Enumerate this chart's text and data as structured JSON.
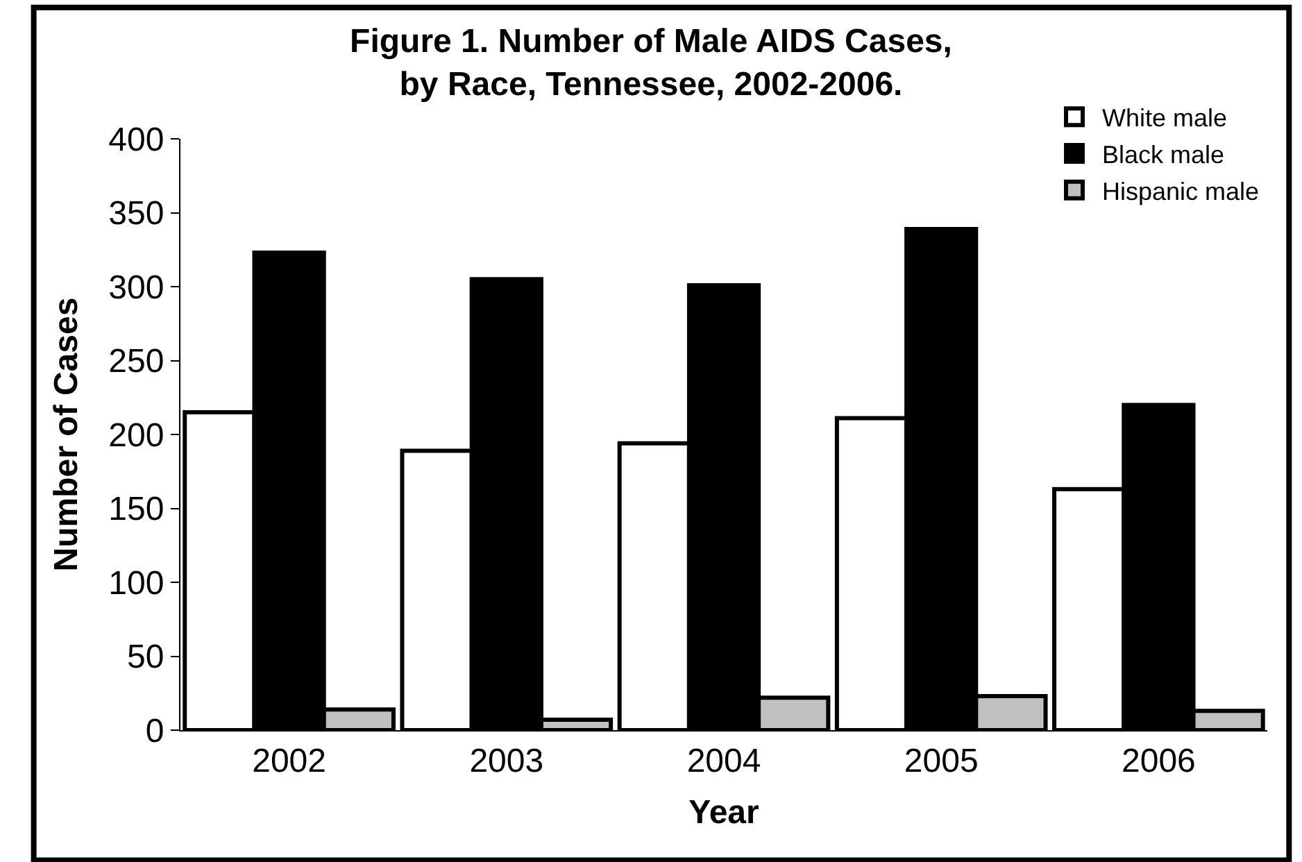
{
  "chart_data": {
    "type": "bar",
    "title": "Figure 1. Number of Male AIDS Cases,\nby Race, Tennessee, 2002-2006.",
    "xlabel": "Year",
    "ylabel": "Number of Cases",
    "categories": [
      "2002",
      "2003",
      "2004",
      "2005",
      "2006"
    ],
    "series": [
      {
        "name": "White male",
        "color": "#ffffff",
        "values": [
          215,
          189,
          194,
          211,
          163
        ]
      },
      {
        "name": "Black male",
        "color": "#000000",
        "values": [
          323,
          305,
          301,
          339,
          220
        ]
      },
      {
        "name": "Hispanic male",
        "color": "#c0c0c0",
        "values": [
          14,
          7,
          22,
          23,
          13
        ]
      }
    ],
    "ylim": [
      0,
      400
    ],
    "yticks": [
      0,
      50,
      100,
      150,
      200,
      250,
      300,
      350,
      400
    ],
    "legend": "top right"
  }
}
